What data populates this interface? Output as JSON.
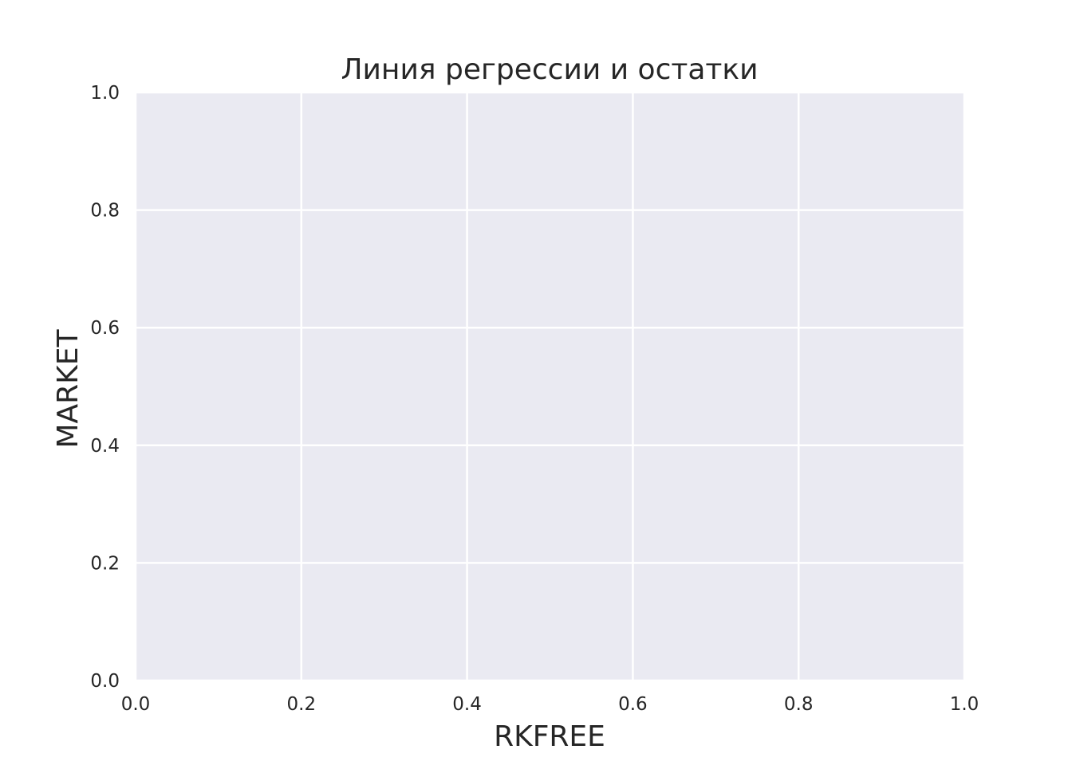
{
  "chart_data": {
    "type": "scatter",
    "title": "Линия регрессии и остатки",
    "xlabel": "RKFREE",
    "ylabel": "MARKET",
    "xlim": [
      0.0,
      1.0
    ],
    "ylim": [
      0.0,
      1.0
    ],
    "xticks": [
      "0.0",
      "0.2",
      "0.4",
      "0.6",
      "0.8",
      "1.0"
    ],
    "yticks": [
      "0.0",
      "0.2",
      "0.4",
      "0.6",
      "0.8",
      "1.0"
    ],
    "grid": true,
    "series": []
  },
  "colors": {
    "plot_background": "#EAEAF2",
    "grid": "#FFFFFF",
    "text": "#262626"
  }
}
